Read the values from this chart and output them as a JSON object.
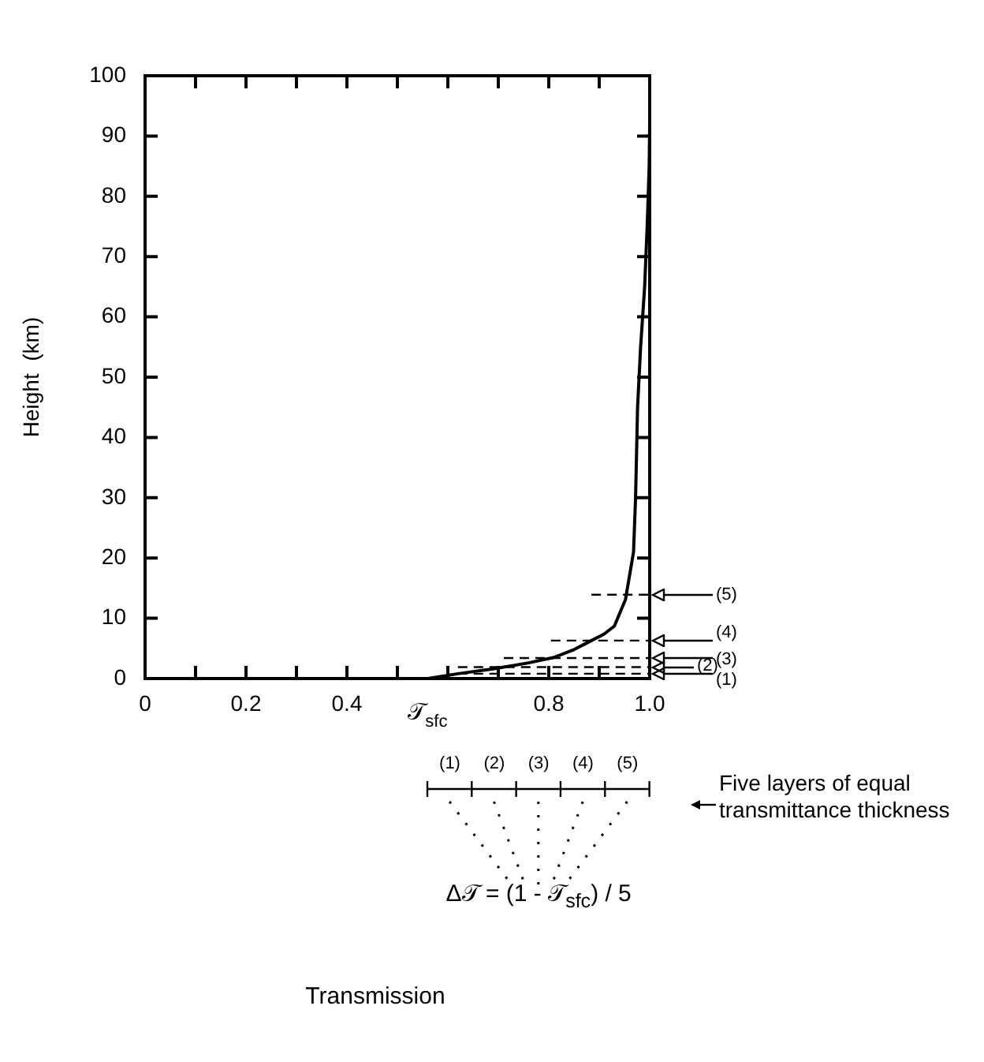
{
  "chart_data": {
    "type": "line",
    "ylabel": "Height  (km)",
    "series": [
      {
        "color": "#000000",
        "x": [
          0.56,
          0.62,
          0.69,
          0.76,
          0.81,
          0.85,
          0.88,
          0.91,
          0.93,
          0.952,
          0.968,
          0.972,
          0.976,
          0.982,
          0.99,
          0.995,
          0.999,
          1.0
        ],
        "values": [
          0,
          0.8,
          1.6,
          2.6,
          3.5,
          4.8,
          6.1,
          7.4,
          8.7,
          13.1,
          21,
          30,
          45,
          55,
          65,
          75,
          85,
          92
        ]
      }
    ],
    "xlim": [
      0,
      1
    ],
    "ylim": [
      0,
      100
    ],
    "xticks": [
      0,
      {
        "value": 0.1,
        "label": null
      },
      0.2,
      {
        "value": 0.3,
        "label": null
      },
      0.4,
      {
        "value": 0.5,
        "label": null
      },
      {
        "value": 0.6,
        "label": null
      },
      {
        "value": 0.7,
        "label": null
      },
      0.8,
      {
        "value": 0.9,
        "label": null
      },
      {
        "value": 1,
        "label": "1.0"
      }
    ],
    "yticks": [
      0,
      10,
      20,
      30,
      40,
      50,
      60,
      70,
      80,
      90,
      100
    ],
    "grid": false,
    "legend": false,
    "marker": "none",
    "line_style": "solid",
    "annotations": [
      {
        "text": "𝒯$_{sfc}$",
        "x": 0.56,
        "y": 0
      },
      "(1)",
      "(2)",
      "(3)",
      "(4)",
      "(5)",
      "Five layers of equal transmittance thickness",
      "Δ𝒯 = (1 - 𝒯$_{sfc}$) / 5",
      "Transmission",
      "(1)",
      "(2)",
      "(3)",
      "(4)",
      "(5)"
    ],
    "ref_lines": [
      {
        "axis": "y",
        "value": 0.8
      },
      {
        "axis": "y",
        "value": 1.9
      },
      {
        "axis": "y",
        "value": 3.4
      },
      {
        "axis": "y",
        "value": 6.3
      },
      {
        "axis": "y",
        "value": 13.9
      }
    ]
  }
}
